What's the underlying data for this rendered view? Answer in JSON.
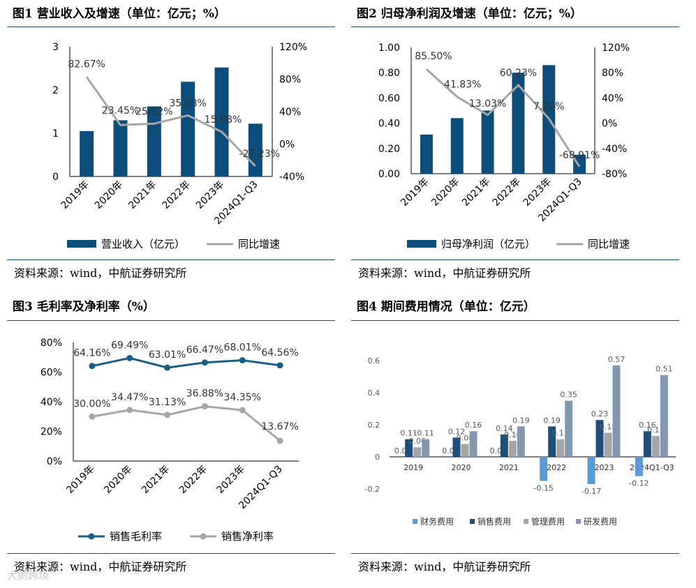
{
  "panels": {
    "p1": {
      "title": "图1 营业收入及增速（单位：亿元；%）",
      "source": "资料来源：wind，中航证券研究所"
    },
    "p2": {
      "title": "图2 归母净利润及增速（单位：亿元；%）",
      "source": "资料来源：wind，中航证券研究所"
    },
    "p3": {
      "title": "图3 毛利率及净利率（%）",
      "source": "资料来源：wind，中航证券研究所"
    },
    "p4": {
      "title": "图4 期间费用情况（单位：亿元）",
      "source": "资料来源：wind，中航证券研究所"
    }
  },
  "watermark": "大鹏跨境",
  "colors": {
    "navy": "#0d4d7a",
    "gray": "#a6a6a6",
    "dark_teal": "#1b5e84",
    "fin": "#5b9bd5",
    "sales": "#1f4e79",
    "mgmt": "#a5a5a5",
    "rd": "#8497b0",
    "rule": "#1f4e79"
  },
  "chart_data": [
    {
      "type": "bar+line",
      "title": "图1 营业收入及增速（单位：亿元；%）",
      "categories": [
        "2019年",
        "2020年",
        "2021年",
        "2022年",
        "2023年",
        "2024Q1-Q3"
      ],
      "bar_series": {
        "name": "营业收入（亿元）",
        "values": [
          1.05,
          1.3,
          1.62,
          2.19,
          2.52,
          1.22
        ]
      },
      "line_series": {
        "name": "同比增速",
        "values": [
          82.67,
          23.45,
          25.12,
          35.28,
          15.08,
          -27.23
        ],
        "labels": [
          "82.67%",
          "23.45%",
          "25.12%",
          "35.28%",
          "15.08%",
          "-27.23%"
        ]
      },
      "y_left": {
        "ylim": [
          0,
          3
        ],
        "ticks": [
          0,
          1,
          2,
          3
        ],
        "tick_labels": [
          "0",
          "1",
          "2",
          "3"
        ]
      },
      "y_right": {
        "ylim": [
          -40,
          120
        ],
        "ticks": [
          -40,
          0,
          40,
          80,
          120
        ],
        "tick_labels": [
          "-40%",
          "0%",
          "40%",
          "80%",
          "120%"
        ]
      }
    },
    {
      "type": "bar+line",
      "title": "图2 归母净利润及增速（单位：亿元；%）",
      "categories": [
        "2019年",
        "2020年",
        "2021年",
        "2022年",
        "2023年",
        "2024Q1-Q3"
      ],
      "bar_series": {
        "name": "归母净利润（亿元）",
        "values": [
          0.31,
          0.44,
          0.5,
          0.8,
          0.86,
          0.15
        ]
      },
      "line_series": {
        "name": "同比增速",
        "values": [
          85.5,
          41.83,
          13.03,
          60.23,
          7.2,
          -68.91
        ],
        "labels": [
          "85.50%",
          "41.83%",
          "13.03%",
          "60.23%",
          "7.20%",
          "-68.91%"
        ]
      },
      "y_left": {
        "ylim": [
          0,
          1
        ],
        "ticks": [
          0,
          0.2,
          0.4,
          0.6,
          0.8,
          1.0
        ],
        "tick_labels": [
          "0.00",
          "0.20",
          "0.40",
          "0.60",
          "0.80",
          "1.00"
        ]
      },
      "y_right": {
        "ylim": [
          -80,
          120
        ],
        "ticks": [
          -80,
          -40,
          0,
          40,
          80,
          120
        ],
        "tick_labels": [
          "-80%",
          "-40%",
          "0%",
          "40%",
          "80%",
          "120%"
        ]
      }
    },
    {
      "type": "line",
      "title": "图3 毛利率及净利率（%）",
      "categories": [
        "2019年",
        "2020年",
        "2021年",
        "2022年",
        "2023年",
        "2024Q1-Q3"
      ],
      "series": [
        {
          "name": "销售毛利率",
          "values": [
            64.16,
            69.49,
            63.01,
            66.47,
            68.01,
            64.56
          ],
          "labels": [
            "64.16%",
            "69.49%",
            "63.01%",
            "66.47%",
            "68.01%",
            "64.56%"
          ]
        },
        {
          "name": "销售净利率",
          "values": [
            30.0,
            34.47,
            31.13,
            36.88,
            34.35,
            13.67
          ],
          "labels": [
            "30.00%",
            "34.47%",
            "31.13%",
            "36.88%",
            "34.35%",
            "13.67%"
          ]
        }
      ],
      "y": {
        "ylim": [
          0,
          80
        ],
        "ticks": [
          0,
          20,
          40,
          60,
          80
        ],
        "tick_labels": [
          "0%",
          "20%",
          "40%",
          "60%",
          "80%"
        ]
      }
    },
    {
      "type": "bar",
      "title": "图4 期间费用情况（单位：亿元）",
      "categories": [
        "2019",
        "2020",
        "2021",
        "2022",
        "2023",
        "2024Q1-Q3"
      ],
      "series": [
        {
          "name": "财务费用",
          "values": [
            0.0,
            0.0,
            0.0,
            -0.15,
            -0.17,
            -0.12
          ],
          "labels": [
            "0.0",
            "0.0",
            "0.0",
            "-0.15",
            "-0.17",
            "-0.12"
          ]
        },
        {
          "name": "销售费用",
          "values": [
            0.11,
            0.12,
            0.14,
            0.19,
            0.23,
            0.16
          ],
          "labels": [
            "0.11",
            "0.12",
            "0.14",
            "0.19",
            "0.23",
            "0.16"
          ]
        },
        {
          "name": "管理费用",
          "values": [
            0.06,
            0.08,
            0.1,
            0.11,
            0.15,
            0.13
          ],
          "labels": [
            "0.06",
            "0.08",
            "0.10",
            "0.11",
            "0.15",
            "0.13"
          ]
        },
        {
          "name": "研发费用",
          "values": [
            0.11,
            0.16,
            0.19,
            0.35,
            0.57,
            0.51
          ],
          "labels": [
            "0.11",
            "0.16",
            "0.19",
            "0.35",
            "0.57",
            "0.51"
          ]
        }
      ],
      "y": {
        "ylim": [
          -0.2,
          0.6
        ],
        "ticks": [
          -0.2,
          0,
          0.2,
          0.4,
          0.6
        ],
        "tick_labels": [
          "-0.2",
          "0",
          "0.2",
          "0.4",
          "0.6"
        ]
      }
    }
  ]
}
